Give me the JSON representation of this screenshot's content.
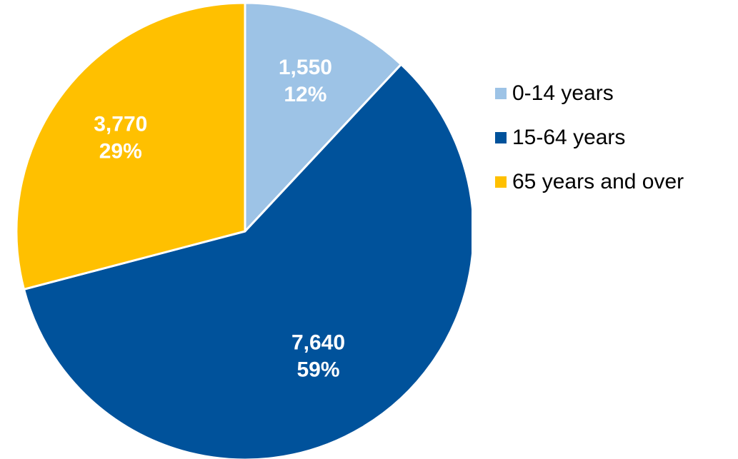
{
  "chart_data": {
    "type": "pie",
    "categories": [
      "0-14 years",
      "15-64 years",
      "65 years and over"
    ],
    "values": [
      1550,
      7640,
      3770
    ],
    "percent_labels": [
      "12%",
      "59%",
      "29%"
    ],
    "value_labels": [
      "1,550",
      "7,640",
      "3,770"
    ],
    "colors": [
      "#9DC3E6",
      "#00529B",
      "#FFC000"
    ],
    "legend_position": "right",
    "start": "12 o'clock",
    "direction": "clockwise"
  }
}
